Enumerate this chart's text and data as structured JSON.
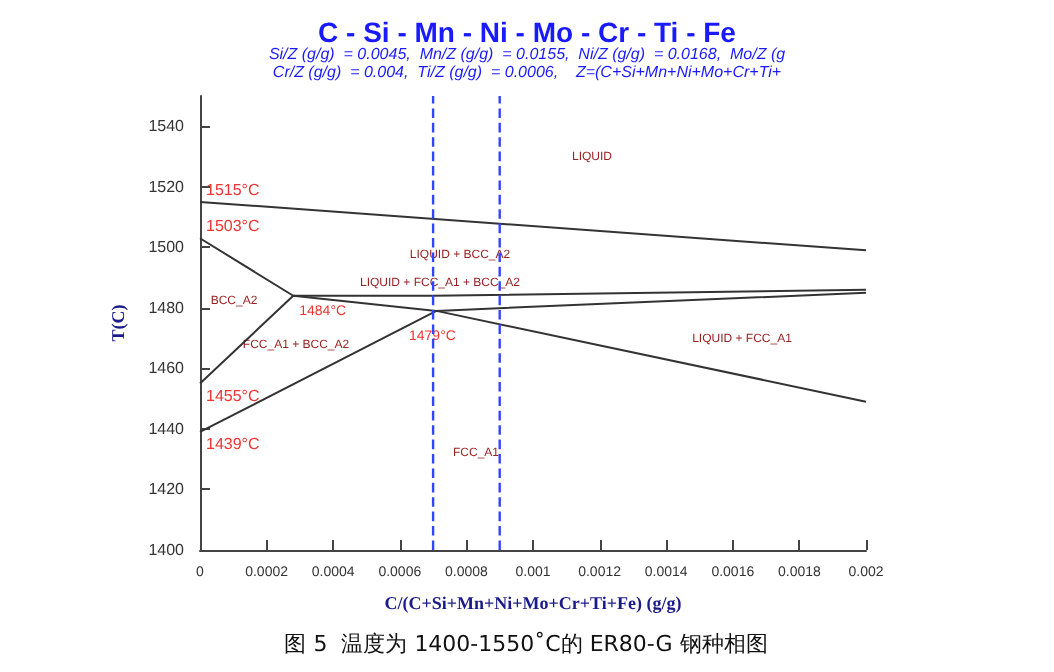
{
  "chart_data": {
    "type": "line",
    "title": "C - Si - Mn - Ni - Mo - Cr - Ti - Fe",
    "subtitle": "Si/Z (g/g)  = 0.0045,  Mn/Z (g/g)  = 0.0155,  Ni/Z (g/g)  = 0.0168,  Mo/Z (g\nCr/Z (g/g)  = 0.004,  Ti/Z (g/g)  = 0.0006,    Z=(C+Si+Mn+Ni+Mo+Cr+Ti+",
    "xlabel": "C/(C+Si+Mn+Ni+Mo+Cr+Ti+Fe) (g/g)",
    "ylabel": "T(C)",
    "series": [
      {
        "color": "#333333",
        "x": [
          0,
          0.002
        ],
        "values": [
          1515,
          1499
        ]
      },
      {
        "color": "#333333",
        "x": [
          0,
          0.00028,
          0.0007,
          0.002
        ],
        "values": [
          1503,
          1484,
          1484,
          1486
        ]
      },
      {
        "color": "#333333",
        "x": [
          0,
          0.00028,
          0.00071,
          0.002
        ],
        "values": [
          1455,
          1484,
          1479,
          1485
        ]
      },
      {
        "color": "#333333",
        "x": [
          0,
          0.00071,
          0.002
        ],
        "values": [
          1439,
          1479,
          1449
        ]
      }
    ],
    "xlim": [
      0,
      0.002
    ],
    "xticks": [
      0,
      0.0002,
      0.0004,
      0.0006,
      0.0008,
      0.001,
      0.0012,
      0.0014,
      0.0016,
      0.0018,
      0.002
    ],
    "ylim": [
      1400,
      1550
    ],
    "yticks": [
      1400,
      1420,
      1440,
      1460,
      1480,
      1500,
      1520,
      1540
    ],
    "marker": "none",
    "line_style": "solid",
    "ref_lines": [
      {
        "axis": "x",
        "value": 0.0007,
        "label": null,
        "color": "#3344ff",
        "line_style": "dashed"
      },
      {
        "axis": "x",
        "value": 0.0009,
        "label": null,
        "color": "#3344ff",
        "line_style": "dashed"
      }
    ],
    "annotations": [
      {
        "text": "1515°C",
        "x": 0,
        "y": 1515
      },
      {
        "text": "1503°C",
        "x": 0,
        "y": 1503
      },
      {
        "text": "1484°C",
        "x": 0.00028,
        "y": 1484
      },
      {
        "text": "1479°C",
        "x": 0.00071,
        "y": 1479
      },
      {
        "text": "1455°C",
        "x": 0,
        "y": 1455
      },
      {
        "text": "1439°C",
        "x": 0,
        "y": 1439
      },
      "LIQUID",
      "LIQUID + BCC_A2",
      "BCC_A2",
      "LIQUID + FCC_A1 + BCC_A2",
      "FCC_A1 + BCC_A2",
      "LIQUID + FCC_A1",
      "FCC_A1",
      "图 5  温度为 1400-1550˚C的 ER80-G 钢种相图"
    ]
  }
}
